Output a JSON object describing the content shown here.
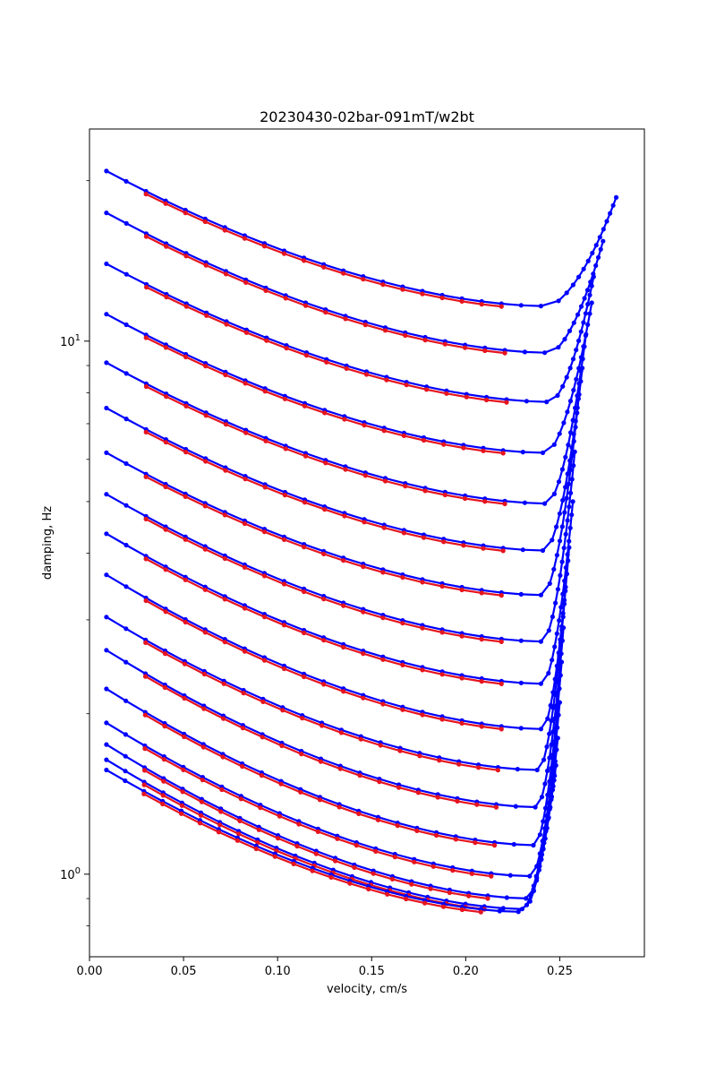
{
  "chart_data": {
    "type": "line",
    "title": "20230430-02bar-091mT/w2bt",
    "xlabel": "velocity, cm/s",
    "ylabel": "damping, Hz",
    "xscale": "linear",
    "yscale": "log",
    "xlim": [
      0.0,
      0.295
    ],
    "ylim": [
      0.7,
      25
    ],
    "grid": false,
    "xticks": [
      {
        "value": 0.0,
        "label": "0.00"
      },
      {
        "value": 0.05,
        "label": "0.05"
      },
      {
        "value": 0.1,
        "label": "0.10"
      },
      {
        "value": 0.15,
        "label": "0.15"
      },
      {
        "value": 0.2,
        "label": "0.20"
      },
      {
        "value": 0.25,
        "label": "0.25"
      }
    ],
    "yticks_major": [
      {
        "value": 1,
        "base": "10",
        "exp": "0"
      },
      {
        "value": 10,
        "base": "10",
        "exp": "1"
      }
    ],
    "yticks_minor": [
      0.8,
      0.9,
      2,
      3,
      4,
      5,
      6,
      7,
      8,
      9,
      20
    ],
    "colors": {
      "blue": "#0000ff",
      "red": "#e6141e"
    },
    "curves_note_colors": "each curve: blue = up-sweep segment, red = down-sweep segment",
    "series": [
      {
        "start_x": 0.009,
        "start_y": 20.6,
        "min_x": 0.24,
        "min_y": 11.5,
        "end_x": 0.28,
        "end_y": 18.6
      },
      {
        "start_x": 0.009,
        "start_y": 17.2,
        "min_x": 0.242,
        "min_y": 9.4,
        "end_x": 0.273,
        "end_y": 15.4
      },
      {
        "start_x": 0.009,
        "start_y": 13.8,
        "min_x": 0.243,
        "min_y": 7.6,
        "end_x": 0.268,
        "end_y": 13.2
      },
      {
        "start_x": 0.009,
        "start_y": 11.1,
        "min_x": 0.241,
        "min_y": 6.1,
        "end_x": 0.267,
        "end_y": 11.8
      },
      {
        "start_x": 0.009,
        "start_y": 9.0,
        "min_x": 0.242,
        "min_y": 4.9,
        "end_x": 0.264,
        "end_y": 10.3
      },
      {
        "start_x": 0.009,
        "start_y": 7.4,
        "min_x": 0.241,
        "min_y": 4.0,
        "end_x": 0.262,
        "end_y": 8.9
      },
      {
        "start_x": 0.009,
        "start_y": 6.1,
        "min_x": 0.24,
        "min_y": 3.3,
        "end_x": 0.26,
        "end_y": 7.8
      },
      {
        "start_x": 0.009,
        "start_y": 5.1,
        "min_x": 0.24,
        "min_y": 2.7,
        "end_x": 0.258,
        "end_y": 6.2
      },
      {
        "start_x": 0.009,
        "start_y": 4.3,
        "min_x": 0.24,
        "min_y": 2.25,
        "end_x": 0.257,
        "end_y": 5.0
      },
      {
        "start_x": 0.009,
        "start_y": 3.6,
        "min_x": 0.24,
        "min_y": 1.85,
        "end_x": 0.255,
        "end_y": 4.1
      },
      {
        "start_x": 0.009,
        "start_y": 3.0,
        "min_x": 0.238,
        "min_y": 1.55,
        "end_x": 0.253,
        "end_y": 3.4
      },
      {
        "start_x": 0.009,
        "start_y": 2.6,
        "min_x": 0.237,
        "min_y": 1.32,
        "end_x": 0.252,
        "end_y": 2.9
      },
      {
        "start_x": 0.009,
        "start_y": 2.2,
        "min_x": 0.236,
        "min_y": 1.12,
        "end_x": 0.251,
        "end_y": 2.5
      },
      {
        "start_x": 0.009,
        "start_y": 1.9,
        "min_x": 0.234,
        "min_y": 0.98,
        "end_x": 0.25,
        "end_y": 2.1
      },
      {
        "start_x": 0.009,
        "start_y": 1.73,
        "min_x": 0.232,
        "min_y": 0.89,
        "end_x": 0.249,
        "end_y": 1.8
      },
      {
        "start_x": 0.009,
        "start_y": 1.62,
        "min_x": 0.23,
        "min_y": 0.85,
        "end_x": 0.248,
        "end_y": 1.6
      },
      {
        "start_x": 0.009,
        "start_y": 1.55,
        "min_x": 0.228,
        "min_y": 0.84,
        "end_x": 0.247,
        "end_y": 1.5
      }
    ]
  }
}
